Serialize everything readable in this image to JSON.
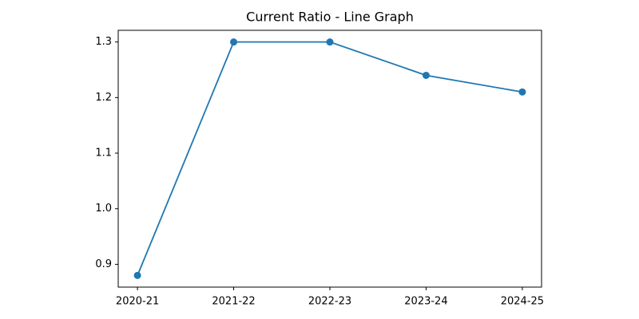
{
  "chart_data": {
    "type": "line",
    "title": "Current Ratio - Line Graph",
    "categories": [
      "2020-21",
      "2021-22",
      "2022-23",
      "2023-24",
      "2024-25"
    ],
    "series": [
      {
        "color": "#1f77b4",
        "values": [
          0.88,
          1.3,
          1.3,
          1.24,
          1.21
        ]
      }
    ],
    "ylim": [
      0.859,
      1.321
    ],
    "yticks": [
      0.9,
      {
        "value": 1,
        "label": "1.0"
      },
      1.1,
      1.2,
      1.3
    ],
    "grid": false
  }
}
